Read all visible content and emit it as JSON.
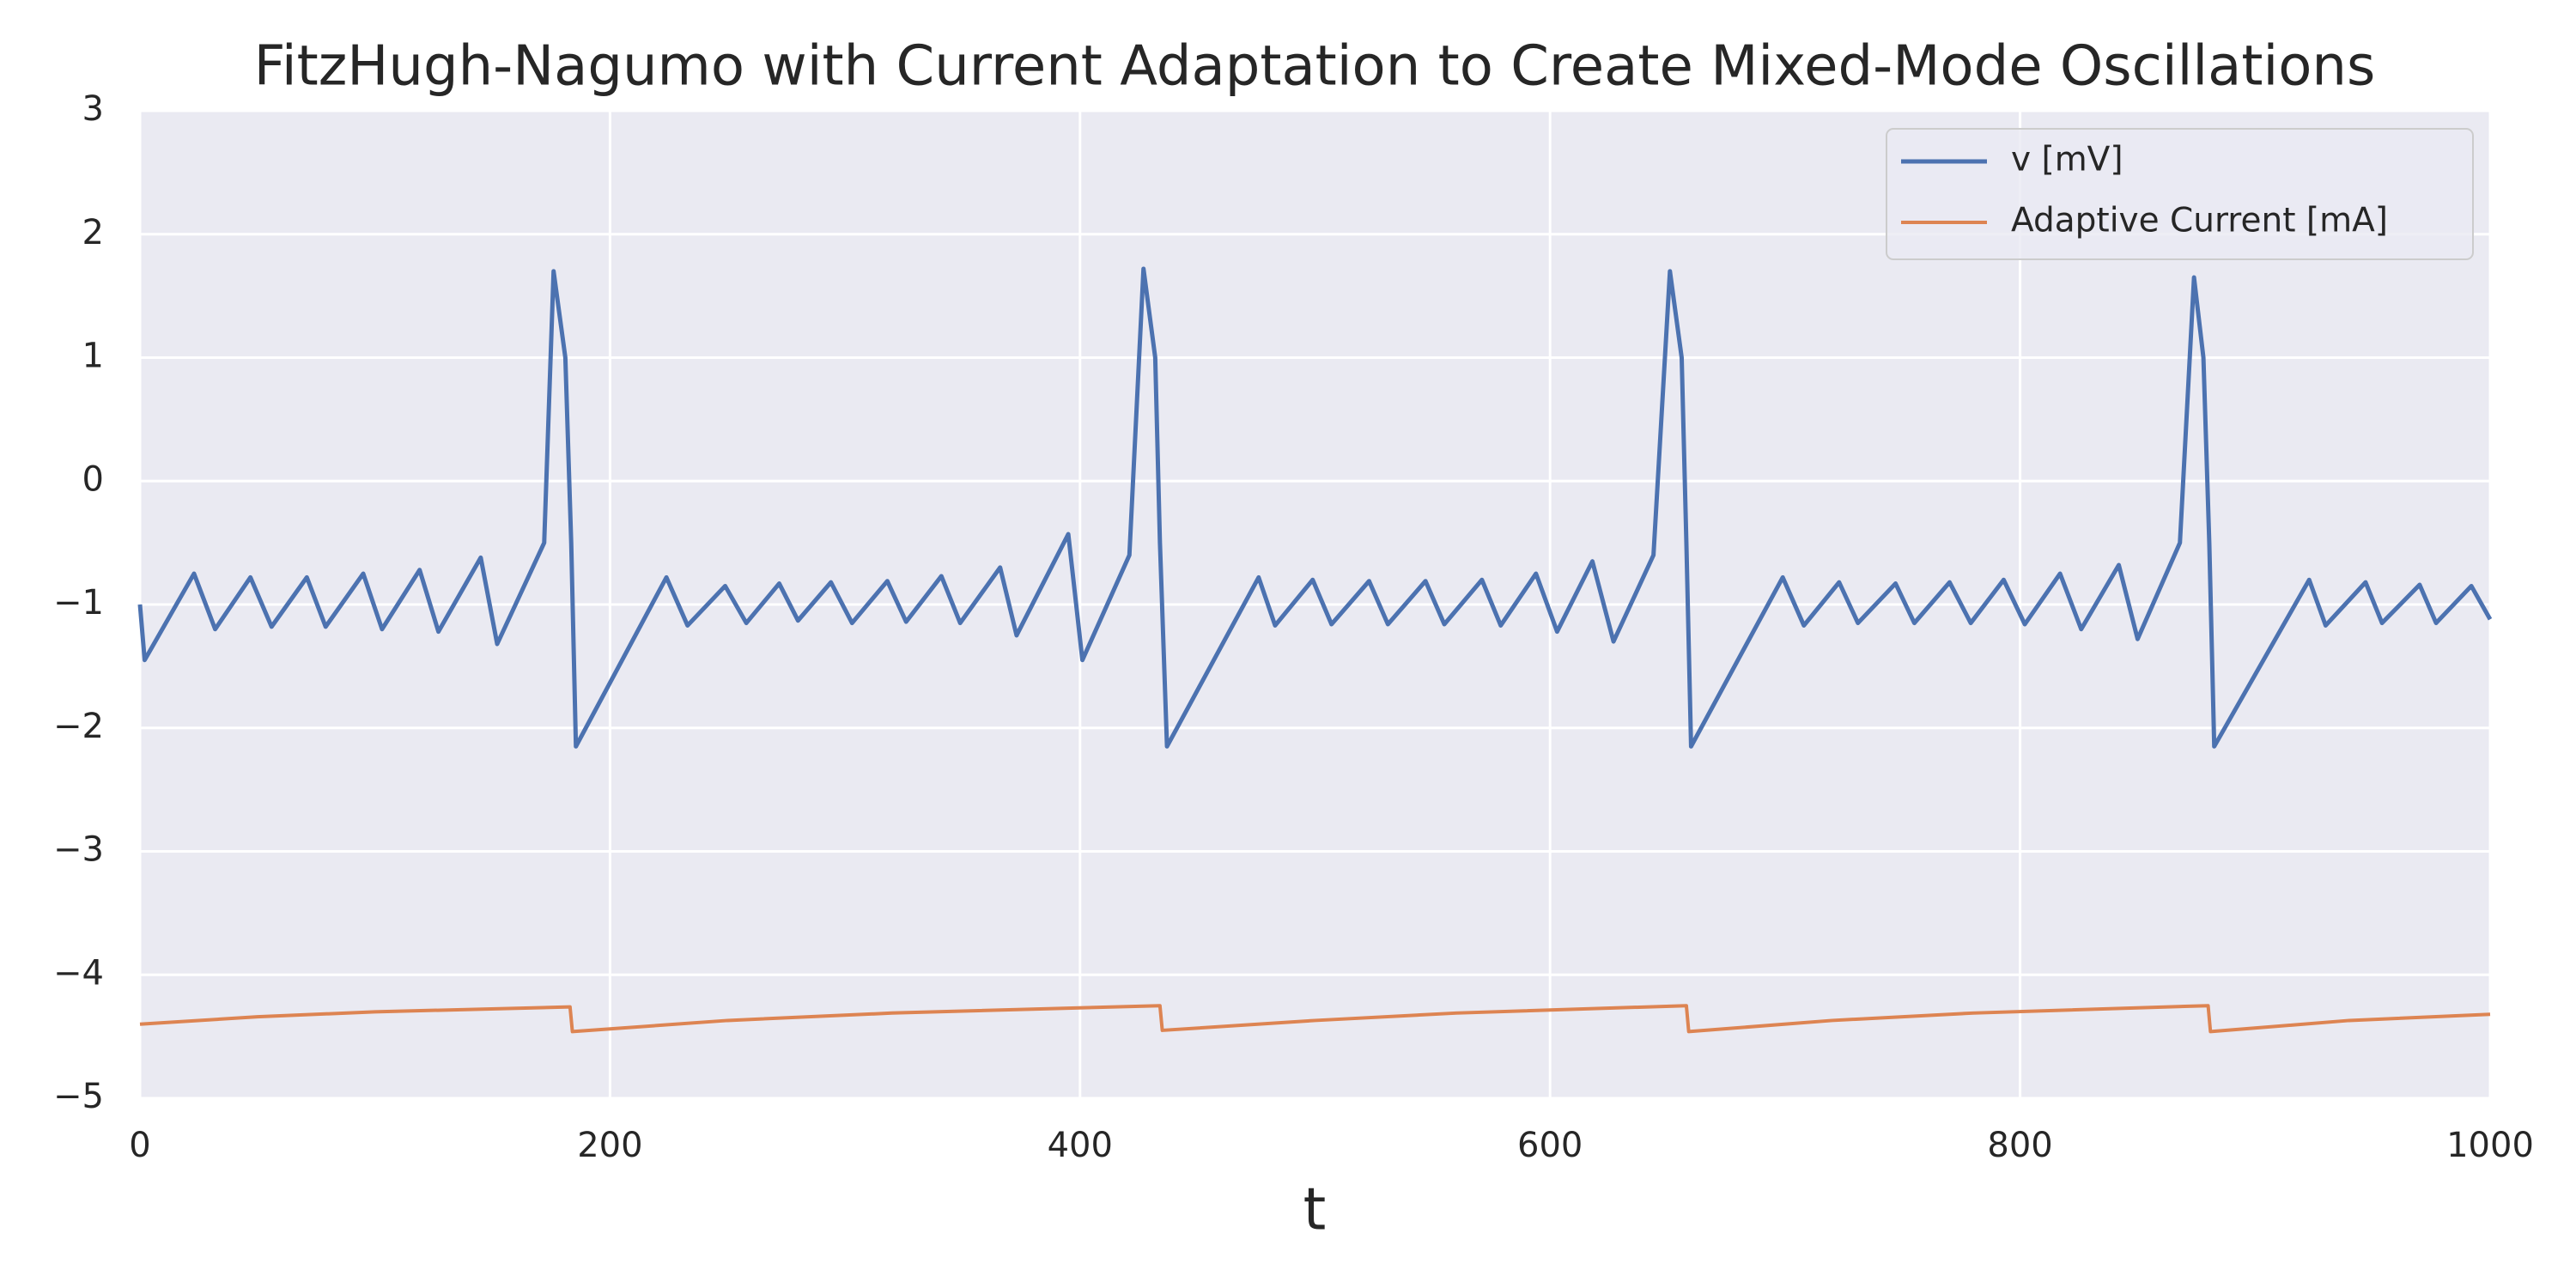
{
  "chart_data": {
    "type": "line",
    "title": "FitzHugh-Nagumo with Current Adaptation to Create Mixed-Mode Oscillations",
    "xlabel": "t",
    "xlim": [
      0,
      1000
    ],
    "xticks": [
      0,
      200,
      400,
      600,
      800,
      1000
    ],
    "ylim": [
      -5,
      3
    ],
    "yticks": [
      {
        "value": -5,
        "label": "−5"
      },
      {
        "value": -4,
        "label": "−4"
      },
      {
        "value": -3,
        "label": "−3"
      },
      {
        "value": -2,
        "label": "−2"
      },
      {
        "value": -1,
        "label": "−1"
      },
      0,
      1,
      2,
      3
    ],
    "grid": true,
    "legend": "upper right",
    "series": [
      {
        "name": "v [mV]",
        "color": "#4c72b0",
        "x": [
          0,
          2,
          23,
          32,
          47,
          56,
          71,
          79,
          95,
          103,
          119,
          127,
          145,
          152,
          172,
          176,
          181,
          183.5,
          185.5,
          224,
          233,
          249,
          258,
          272,
          280,
          294,
          303,
          318,
          326,
          341,
          349,
          366,
          373,
          395,
          401,
          421,
          427,
          432,
          434,
          437,
          476,
          483,
          499,
          507,
          523,
          531,
          547,
          555,
          571,
          579,
          594,
          603,
          618,
          627,
          644,
          651,
          656,
          658,
          660,
          699,
          708,
          723,
          731,
          747,
          755,
          770,
          779,
          793,
          802,
          817,
          826,
          842,
          850,
          868,
          874,
          878,
          880.5,
          882.6,
          923,
          930,
          947,
          954,
          970,
          977,
          992,
          1000
        ],
        "values": [
          -1.0,
          -1.45,
          -0.75,
          -1.2,
          -0.78,
          -1.18,
          -0.78,
          -1.18,
          -0.75,
          -1.2,
          -0.72,
          -1.22,
          -0.62,
          -1.32,
          -0.5,
          1.7,
          1.0,
          -0.5,
          -2.15,
          -0.78,
          -1.17,
          -0.85,
          -1.15,
          -0.83,
          -1.13,
          -0.82,
          -1.15,
          -0.81,
          -1.14,
          -0.77,
          -1.15,
          -0.7,
          -1.25,
          -0.43,
          -1.45,
          -0.6,
          1.72,
          1.0,
          -0.5,
          -2.15,
          -0.78,
          -1.17,
          -0.8,
          -1.16,
          -0.81,
          -1.16,
          -0.81,
          -1.16,
          -0.8,
          -1.17,
          -0.75,
          -1.22,
          -0.65,
          -1.3,
          -0.6,
          1.7,
          1.0,
          -0.5,
          -2.15,
          -0.78,
          -1.17,
          -0.82,
          -1.15,
          -0.83,
          -1.15,
          -0.82,
          -1.15,
          -0.8,
          -1.16,
          -0.75,
          -1.2,
          -0.68,
          -1.28,
          -0.5,
          1.65,
          1.0,
          -0.5,
          -2.15,
          -0.8,
          -1.17,
          -0.82,
          -1.15,
          -0.84,
          -1.15,
          -0.85,
          -1.12
        ]
      },
      {
        "name": "Adaptive Current [mA]",
        "color": "#dd8452",
        "x": [
          0,
          50,
          100,
          183,
          184,
          250,
          320,
          434,
          435,
          500,
          560,
          658,
          659,
          720,
          780,
          880,
          881,
          940,
          1000
        ],
        "values": [
          -4.4,
          -4.34,
          -4.3,
          -4.26,
          -4.46,
          -4.37,
          -4.31,
          -4.25,
          -4.45,
          -4.37,
          -4.31,
          -4.25,
          -4.46,
          -4.37,
          -4.31,
          -4.25,
          -4.46,
          -4.37,
          -4.32
        ]
      }
    ]
  }
}
